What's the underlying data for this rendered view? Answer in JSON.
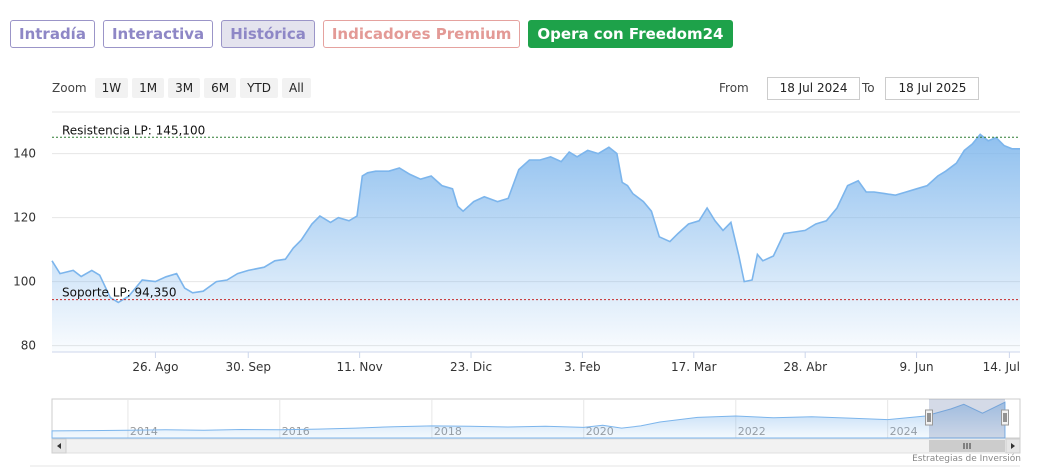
{
  "tabs": [
    {
      "label": "Intradía",
      "active": false
    },
    {
      "label": "Interactiva",
      "active": false
    },
    {
      "label": "Histórica",
      "active": true
    },
    {
      "label": "Indicadores Premium",
      "active": false
    },
    {
      "label": "Opera con Freedom24",
      "active": false
    }
  ],
  "zoom": {
    "label": "Zoom",
    "buttons": [
      "1W",
      "1M",
      "3M",
      "6M",
      "YTD",
      "All"
    ]
  },
  "range": {
    "from_label": "From",
    "from_value": "18 Jul 2024",
    "to_label": "To",
    "to_value": "18 Jul 2025"
  },
  "credit": "Estrategias de Inversión",
  "colors": {
    "area": "#7cb5ec",
    "line": "#7cb5ec",
    "resistance": "#2e7d32",
    "support": "#c62828"
  },
  "chart_data": {
    "type": "area",
    "x_axis_ticks": [
      "26. Ago",
      "30. Sep",
      "11. Nov",
      "23. Dic",
      "3. Feb",
      "17. Mar",
      "28. Abr",
      "9. Jun",
      "14. Jul"
    ],
    "y_axis_ticks": [
      80,
      100,
      120,
      140
    ],
    "ylim": [
      78,
      153
    ],
    "xlim": [
      "2024-07-18",
      "2025-07-18"
    ],
    "annotations": [
      {
        "label": "Resistencia LP: 145,100",
        "value": 145.1
      },
      {
        "label": "Soporte LP: 94,350",
        "value": 94.35
      }
    ],
    "series": [
      {
        "values": [
          [
            "2024-07-18",
            106.5
          ],
          [
            "2024-07-21",
            102.5
          ],
          [
            "2024-07-26",
            103.5
          ],
          [
            "2024-07-29",
            101.6
          ],
          [
            "2024-08-02",
            103.5
          ],
          [
            "2024-08-05",
            102
          ],
          [
            "2024-08-09",
            95
          ],
          [
            "2024-08-12",
            93.5
          ],
          [
            "2024-08-16",
            95.5
          ],
          [
            "2024-08-21",
            100.5
          ],
          [
            "2024-08-26",
            100
          ],
          [
            "2024-08-30",
            101.5
          ],
          [
            "2024-09-03",
            102.5
          ],
          [
            "2024-09-06",
            98
          ],
          [
            "2024-09-09",
            96.5
          ],
          [
            "2024-09-13",
            97
          ],
          [
            "2024-09-18",
            100
          ],
          [
            "2024-09-22",
            100.5
          ],
          [
            "2024-09-26",
            102.5
          ],
          [
            "2024-09-30",
            103.5
          ],
          [
            "2024-10-06",
            104.5
          ],
          [
            "2024-10-10",
            106.5
          ],
          [
            "2024-10-14",
            107
          ],
          [
            "2024-10-17",
            110.5
          ],
          [
            "2024-10-20",
            113
          ],
          [
            "2024-10-24",
            118
          ],
          [
            "2024-10-27",
            120.5
          ],
          [
            "2024-10-31",
            118.5
          ],
          [
            "2024-11-03",
            120
          ],
          [
            "2024-11-07",
            119
          ],
          [
            "2024-11-10",
            120.5
          ],
          [
            "2024-11-12",
            133
          ],
          [
            "2024-11-14",
            134
          ],
          [
            "2024-11-17",
            134.5
          ],
          [
            "2024-11-22",
            134.5
          ],
          [
            "2024-11-26",
            135.5
          ],
          [
            "2024-11-30",
            133.5
          ],
          [
            "2024-12-04",
            132
          ],
          [
            "2024-12-08",
            133
          ],
          [
            "2024-12-12",
            130
          ],
          [
            "2024-12-16",
            129
          ],
          [
            "2024-12-18",
            123.5
          ],
          [
            "2024-12-20",
            122
          ],
          [
            "2024-12-24",
            125
          ],
          [
            "2024-12-28",
            126.5
          ],
          [
            "2025-01-02",
            125
          ],
          [
            "2025-01-06",
            126
          ],
          [
            "2025-01-10",
            135
          ],
          [
            "2025-01-14",
            138
          ],
          [
            "2025-01-18",
            138
          ],
          [
            "2025-01-22",
            139
          ],
          [
            "2025-01-26",
            137.5
          ],
          [
            "2025-01-29",
            140.5
          ],
          [
            "2025-02-01",
            139
          ],
          [
            "2025-02-05",
            141
          ],
          [
            "2025-02-09",
            140
          ],
          [
            "2025-02-13",
            142
          ],
          [
            "2025-02-16",
            140
          ],
          [
            "2025-02-18",
            131
          ],
          [
            "2025-02-20",
            130
          ],
          [
            "2025-02-22",
            127.5
          ],
          [
            "2025-02-26",
            125
          ],
          [
            "2025-03-01",
            122
          ],
          [
            "2025-03-04",
            114
          ],
          [
            "2025-03-08",
            112.5
          ],
          [
            "2025-03-11",
            115
          ],
          [
            "2025-03-15",
            118
          ],
          [
            "2025-03-19",
            119
          ],
          [
            "2025-03-22",
            123
          ],
          [
            "2025-03-25",
            119
          ],
          [
            "2025-03-28",
            116
          ],
          [
            "2025-03-31",
            118.5
          ],
          [
            "2025-04-03",
            108
          ],
          [
            "2025-04-05",
            100
          ],
          [
            "2025-04-08",
            100.5
          ],
          [
            "2025-04-10",
            108.5
          ],
          [
            "2025-04-12",
            106.5
          ],
          [
            "2025-04-16",
            108
          ],
          [
            "2025-04-20",
            115
          ],
          [
            "2025-04-24",
            115.5
          ],
          [
            "2025-04-28",
            116
          ],
          [
            "2025-05-02",
            118
          ],
          [
            "2025-05-06",
            119
          ],
          [
            "2025-05-10",
            123
          ],
          [
            "2025-05-14",
            130
          ],
          [
            "2025-05-18",
            131.5
          ],
          [
            "2025-05-21",
            128
          ],
          [
            "2025-05-24",
            128
          ],
          [
            "2025-05-28",
            127.5
          ],
          [
            "2025-06-01",
            127
          ],
          [
            "2025-06-05",
            128
          ],
          [
            "2025-06-09",
            129
          ],
          [
            "2025-06-13",
            130
          ],
          [
            "2025-06-17",
            133
          ],
          [
            "2025-06-20",
            134.5
          ],
          [
            "2025-06-24",
            137
          ],
          [
            "2025-06-27",
            141
          ],
          [
            "2025-06-30",
            143
          ],
          [
            "2025-07-03",
            146
          ],
          [
            "2025-07-06",
            144
          ],
          [
            "2025-07-09",
            145
          ],
          [
            "2025-07-12",
            142.5
          ],
          [
            "2025-07-15",
            141.5
          ],
          [
            "2025-07-18",
            141.5
          ]
        ]
      }
    ]
  },
  "navigator": {
    "year_labels": [
      "2014",
      "2016",
      "2018",
      "2020",
      "2022",
      "2024"
    ],
    "values": [
      [
        "2013-01-01",
        60
      ],
      [
        "2013-07-01",
        61
      ],
      [
        "2014-01-01",
        62
      ],
      [
        "2014-07-01",
        63
      ],
      [
        "2015-01-01",
        62
      ],
      [
        "2015-07-01",
        64
      ],
      [
        "2016-01-01",
        63
      ],
      [
        "2016-07-01",
        65
      ],
      [
        "2017-01-01",
        68
      ],
      [
        "2017-07-01",
        72
      ],
      [
        "2018-01-01",
        74
      ],
      [
        "2018-07-01",
        73
      ],
      [
        "2019-01-01",
        71
      ],
      [
        "2019-07-01",
        73
      ],
      [
        "2020-01-01",
        70
      ],
      [
        "2020-04-01",
        76
      ],
      [
        "2020-07-01",
        68
      ],
      [
        "2020-10-01",
        74
      ],
      [
        "2021-01-01",
        85
      ],
      [
        "2021-07-01",
        98
      ],
      [
        "2022-01-01",
        102
      ],
      [
        "2022-07-01",
        97
      ],
      [
        "2023-01-01",
        100
      ],
      [
        "2023-07-01",
        96
      ],
      [
        "2024-01-01",
        92
      ],
      [
        "2024-07-01",
        102
      ],
      [
        "2024-11-01",
        122
      ],
      [
        "2025-01-01",
        135
      ],
      [
        "2025-04-01",
        110
      ],
      [
        "2025-07-18",
        141
      ]
    ]
  }
}
